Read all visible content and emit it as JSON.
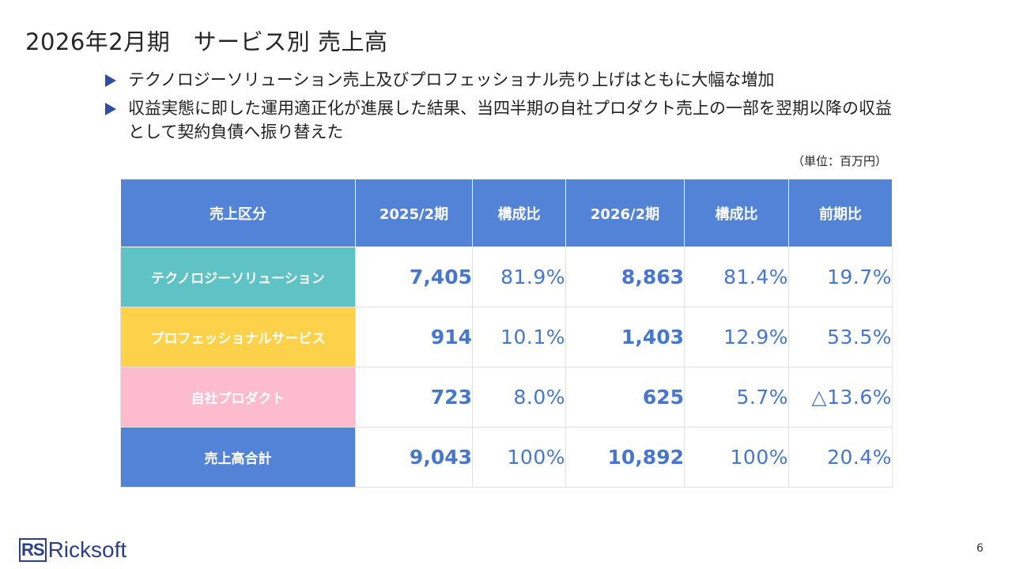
{
  "slide": {
    "title": "2026年2月期　サービス別 売上高",
    "bullets": [
      "テクノロジーソリューション売上及びプロフェッショナル売り上げはともに大幅な増加",
      "収益実態に即した運用適正化が進展した結果、当四半期の自社プロダクト売上の一部を翌期以降の収益として契約負債へ振り替えた"
    ],
    "unit": "（単位：百万円）",
    "page_number": "6"
  },
  "table": {
    "headers": [
      "売上区分",
      "2025/2期",
      "構成比",
      "2026/2期",
      "構成比",
      "前期比"
    ],
    "rows": [
      {
        "category": "テクノロジーソリューション",
        "fy2025": "7,405",
        "ratio2025": "81.9%",
        "fy2026": "8,863",
        "ratio2026": "81.4%",
        "yoy": "19.7%",
        "color": "#5fc2c5"
      },
      {
        "category": "プロフェッショナルサービス",
        "fy2025": "914",
        "ratio2025": "10.1%",
        "fy2026": "1,403",
        "ratio2026": "12.9%",
        "yoy": "53.5%",
        "color": "#fdd24a"
      },
      {
        "category": "自社プロダクト",
        "fy2025": "723",
        "ratio2025": "8.0%",
        "fy2026": "625",
        "ratio2026": "5.7%",
        "yoy": "△13.6%",
        "color": "#fdbccd"
      },
      {
        "category": "売上高合計",
        "fy2025": "9,043",
        "ratio2025": "100%",
        "fy2026": "10,892",
        "ratio2026": "100%",
        "yoy": "20.4%",
        "color": "#5283d6"
      }
    ]
  },
  "logo": {
    "mark": "RS",
    "name": "Ricksoft"
  },
  "colors": {
    "header": "#5283d6",
    "value_text": "#4677cd",
    "bullet_arrow": "#2f4ea3",
    "logo": "#2b3f8a"
  }
}
